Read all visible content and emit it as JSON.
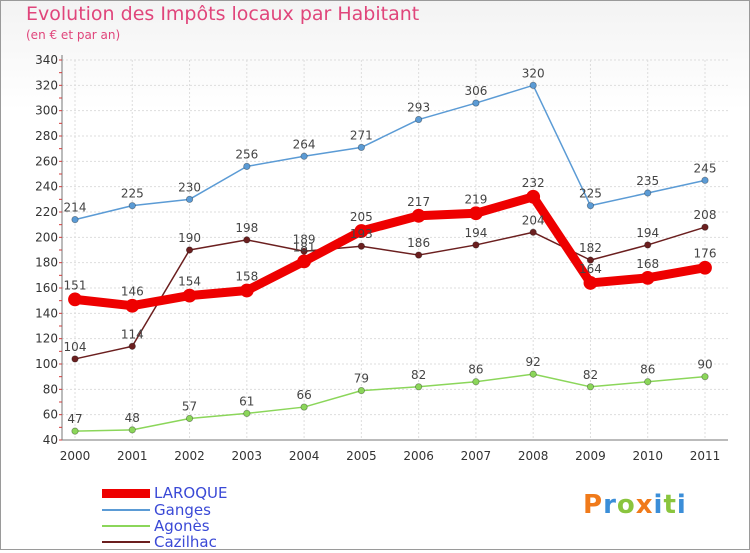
{
  "header": {
    "title": "Evolution des Impôts locaux par Habitant",
    "subtitle": "(en € et par an)"
  },
  "chart_data": {
    "type": "line",
    "title": "Evolution des Impôts locaux par Habitant",
    "subtitle": "(en € et par an)",
    "xlabel": "",
    "ylabel": "",
    "x": [
      "2000",
      "2001",
      "2002",
      "2003",
      "2004",
      "2005",
      "2006",
      "2007",
      "2008",
      "2009",
      "2010",
      "2011"
    ],
    "ylim": [
      40,
      340
    ],
    "yticks": [
      40,
      60,
      80,
      100,
      120,
      140,
      160,
      180,
      200,
      220,
      240,
      260,
      280,
      300,
      320,
      340
    ],
    "grid": true,
    "legend_position": "bottom-left",
    "series": [
      {
        "name": "LAROQUE",
        "color": "#ee0000",
        "values": [
          151,
          146,
          154,
          158,
          181,
          205,
          217,
          219,
          232,
          164,
          168,
          176
        ]
      },
      {
        "name": "Ganges",
        "color": "#5b9bd5",
        "values": [
          214,
          225,
          230,
          256,
          264,
          271,
          293,
          306,
          320,
          225,
          235,
          245
        ]
      },
      {
        "name": "Agonès",
        "color": "#8bd65a",
        "values": [
          47,
          48,
          57,
          61,
          66,
          79,
          82,
          86,
          92,
          82,
          86,
          90
        ]
      },
      {
        "name": "Cazilhac",
        "color": "#6b1f1f",
        "values": [
          104,
          114,
          190,
          198,
          189,
          193,
          186,
          194,
          204,
          182,
          194,
          208
        ]
      }
    ]
  },
  "legend": [
    {
      "label": "LAROQUE"
    },
    {
      "label": "Ganges"
    },
    {
      "label": "Agonès"
    },
    {
      "label": "Cazilhac"
    }
  ],
  "logo": {
    "letters": [
      "P",
      "r",
      "o",
      "x",
      "i",
      "t",
      "i"
    ],
    "colors": [
      "#f07a1a",
      "#3b8ed8",
      "#8ac53e",
      "#f07a1a",
      "#3b8ed8",
      "#8ac53e",
      "#3b8ed8"
    ]
  }
}
